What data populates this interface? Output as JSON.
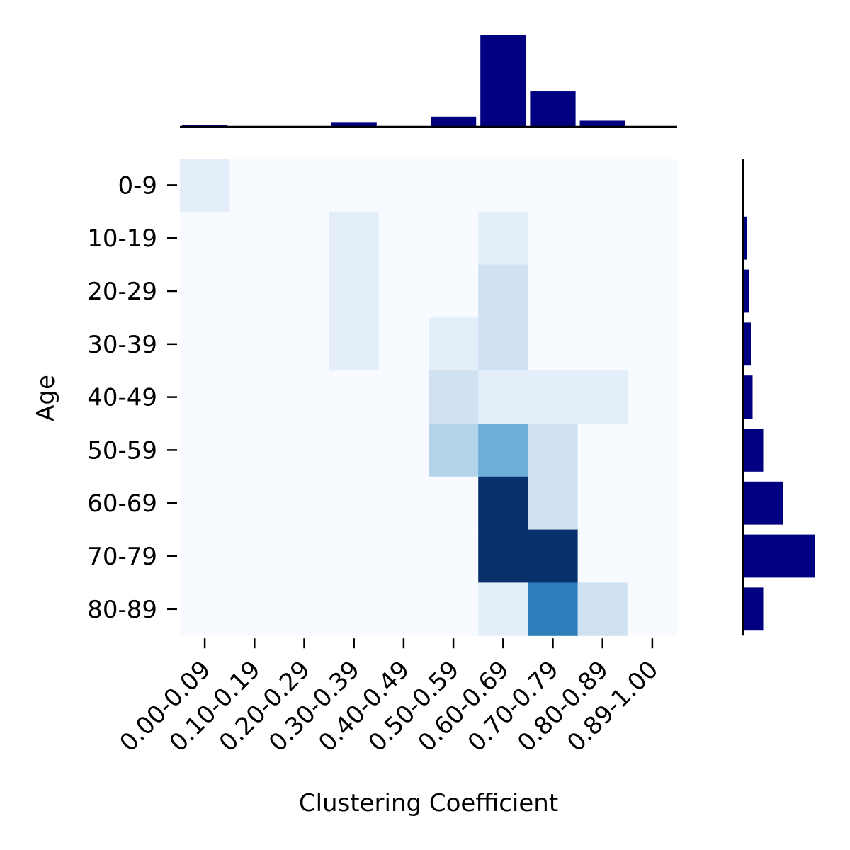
{
  "chart_data": {
    "type": "heatmap",
    "xlabel": "Clustering Coefficient",
    "ylabel": "Age",
    "x_categories": [
      "0.00-0.09",
      "0.10-0.19",
      "0.20-0.29",
      "0.30-0.39",
      "0.40-0.49",
      "0.50-0.59",
      "0.60-0.69",
      "0.70-0.79",
      "0.80-0.89",
      "0.89-1.00"
    ],
    "y_categories": [
      "0-9",
      "10-19",
      "20-29",
      "30-39",
      "40-49",
      "50-59",
      "60-69",
      "70-79",
      "80-89"
    ],
    "matrix": [
      [
        1,
        0,
        0,
        0,
        0,
        0,
        0,
        0,
        0,
        0
      ],
      [
        0,
        0,
        0,
        1,
        0,
        0,
        1,
        0,
        0,
        0
      ],
      [
        0,
        0,
        0,
        1,
        0,
        0,
        2,
        0,
        0,
        0
      ],
      [
        0,
        0,
        0,
        1,
        0,
        1,
        2,
        0,
        0,
        0
      ],
      [
        0,
        0,
        0,
        0,
        0,
        2,
        1,
        1,
        1,
        0
      ],
      [
        0,
        0,
        0,
        0,
        0,
        3,
        5,
        2,
        0,
        0
      ],
      [
        0,
        0,
        0,
        0,
        0,
        0,
        10,
        2,
        0,
        0
      ],
      [
        0,
        0,
        0,
        0,
        0,
        0,
        10,
        10,
        0,
        0
      ],
      [
        0,
        0,
        0,
        0,
        0,
        0,
        1,
        7,
        2,
        0
      ]
    ],
    "colormap": "Blues",
    "top_marginal": {
      "type": "bar",
      "note": "column totals of a finer binning",
      "values": [
        1,
        0,
        0,
        3,
        0,
        7,
        68,
        26,
        4,
        0
      ]
    },
    "right_marginal": {
      "type": "barh",
      "values": [
        0,
        2,
        3,
        4,
        5,
        11,
        22,
        40,
        11
      ]
    },
    "marginal_color": "#000080"
  }
}
